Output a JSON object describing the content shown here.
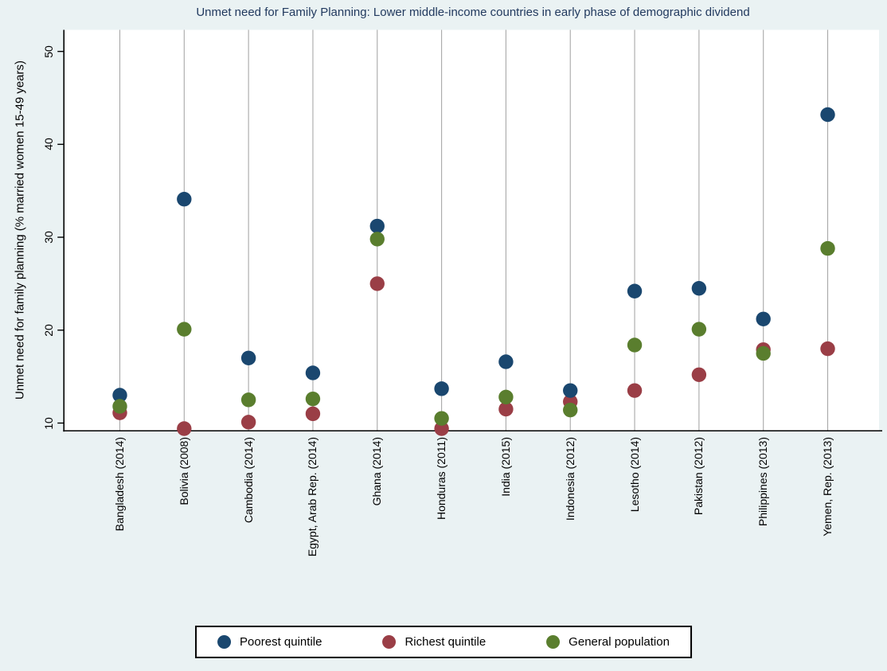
{
  "title": "Unmet need for Family Planning: Lower middle-income countries in early phase of demographic dividend",
  "colors": {
    "background": "#eaf2f3",
    "plot_bg": "#ffffff",
    "title": "#223a5f",
    "axis": "#000000",
    "gridline": "#a8a8a8",
    "poorest": "#1a476f",
    "richest": "#9a3e46",
    "general": "#5a7e2e"
  },
  "chart_data": {
    "type": "scatter",
    "title": "Unmet need for Family Planning: Lower middle-income countries in early phase of demographic dividend",
    "xlabel": "",
    "ylabel": "Unmet need for family planning (% married women 15-49 years)",
    "ylim": [
      9.2,
      52.3
    ],
    "yticks": [
      10,
      20,
      30,
      40,
      50
    ],
    "grid": "vertical-only",
    "legend_position": "bottom",
    "categories": [
      "Bangladesh (2014)",
      "Bolivia (2008)",
      "Cambodia (2014)",
      "Egypt, Arab Rep. (2014)",
      "Ghana (2014)",
      "Honduras (2011)",
      "India (2015)",
      "Indonesia (2012)",
      "Lesotho (2014)",
      "Pakistan (2012)",
      "Philippines (2013)",
      "Yemen, Rep. (2013)"
    ],
    "series": [
      {
        "name": "Poorest quintile",
        "values": [
          13.0,
          34.1,
          17.0,
          15.4,
          31.2,
          13.7,
          16.6,
          13.5,
          24.2,
          24.5,
          21.2,
          43.2
        ]
      },
      {
        "name": "Richest quintile",
        "values": [
          11.1,
          9.4,
          10.1,
          11.0,
          25.0,
          9.4,
          11.5,
          12.3,
          13.5,
          15.2,
          17.9,
          18.0
        ]
      },
      {
        "name": "General population",
        "values": [
          11.8,
          20.1,
          12.5,
          12.6,
          29.8,
          10.5,
          12.8,
          11.4,
          18.4,
          20.1,
          17.5,
          28.8
        ]
      }
    ]
  }
}
